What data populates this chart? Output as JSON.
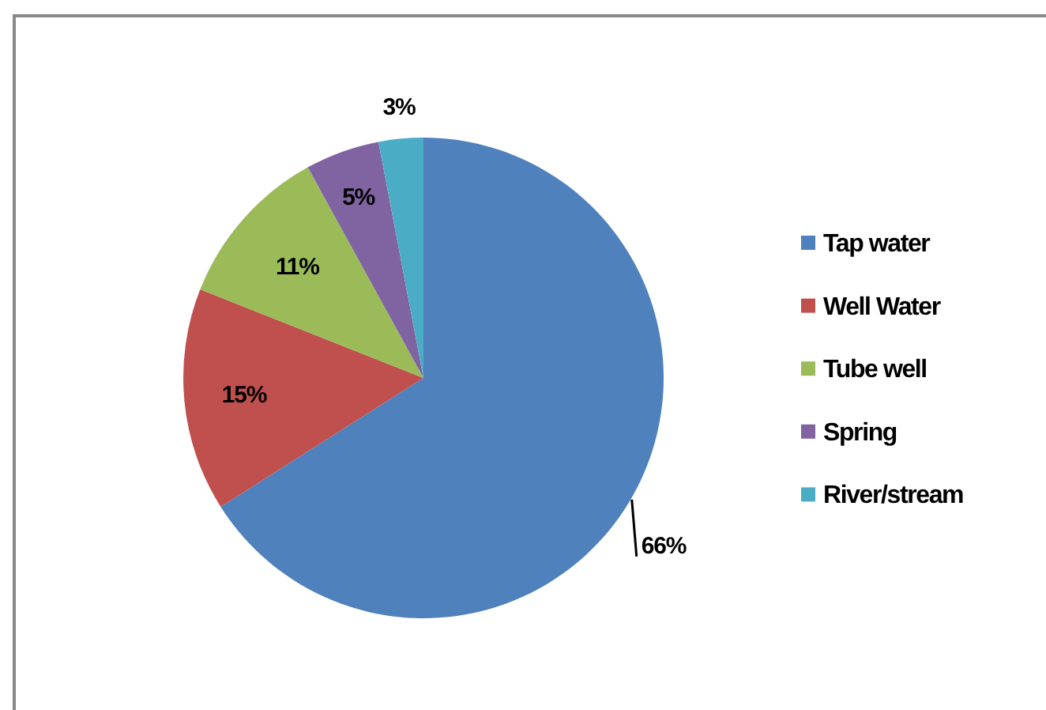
{
  "chart_data": {
    "type": "pie",
    "categories": [
      "Tap water",
      "Well Water",
      "Tube well",
      "Spring",
      "River/stream"
    ],
    "values": [
      66,
      15,
      11,
      5,
      3
    ],
    "value_labels": [
      "66%",
      "15%",
      "11%",
      "5%",
      "3%"
    ],
    "colors": [
      "#4f81bd",
      "#c0504d",
      "#9bbb59",
      "#8064a2",
      "#4bacc6"
    ],
    "legend": "right"
  }
}
